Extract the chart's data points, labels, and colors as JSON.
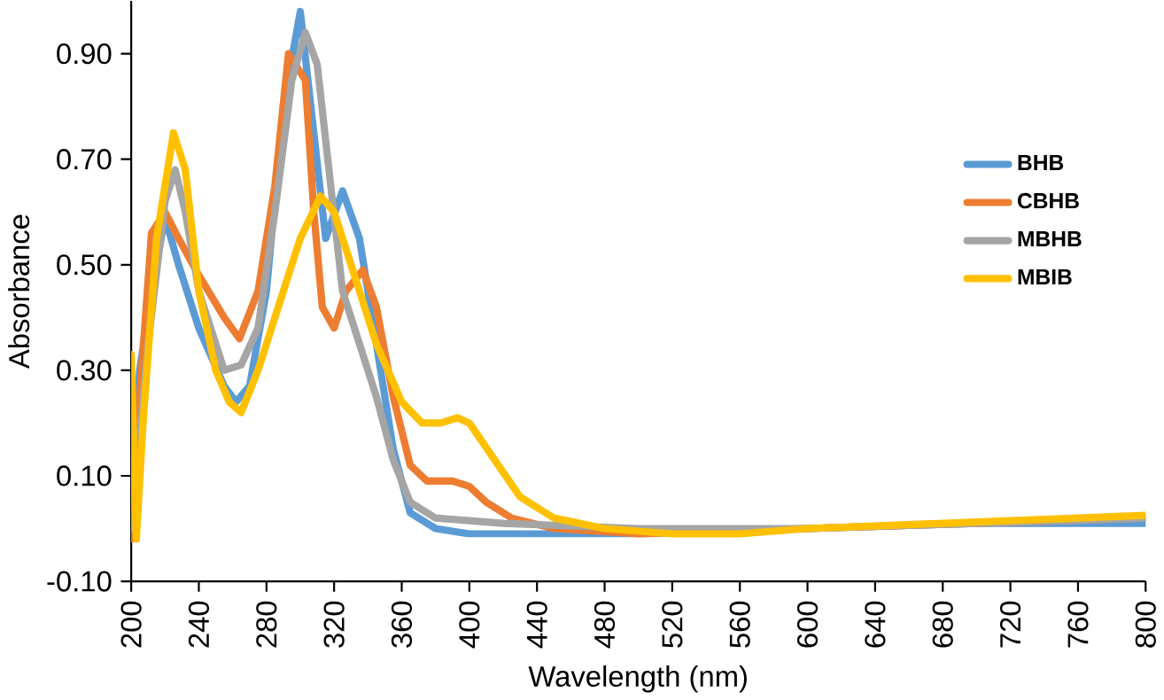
{
  "chart_data": {
    "type": "line",
    "xlabel": "Wavelength (nm)",
    "ylabel": "Absorbance",
    "xlim": [
      200,
      800
    ],
    "ylim": [
      -0.1,
      1.0
    ],
    "xticks": [
      200,
      240,
      280,
      320,
      360,
      400,
      440,
      480,
      520,
      560,
      600,
      640,
      680,
      720,
      760,
      800
    ],
    "yticks": [
      {
        "value": -0.1,
        "label": "-0.10"
      },
      {
        "value": 0.1,
        "label": "0.10"
      },
      {
        "value": 0.3,
        "label": "0.30"
      },
      {
        "value": 0.5,
        "label": "0.50"
      },
      {
        "value": 0.7,
        "label": "0.70"
      },
      {
        "value": 0.9,
        "label": "0.90"
      }
    ],
    "grid": false,
    "legend": "right",
    "marker": "none",
    "line_style": "solid",
    "series": [
      {
        "name": "BHB",
        "color": "#5b9bd5",
        "x": [
          200,
          205,
          212,
          220,
          228,
          240,
          255,
          262,
          270,
          280,
          290,
          300,
          308,
          315,
          325,
          335,
          345,
          355,
          365,
          380,
          400,
          500,
          600,
          700,
          800
        ],
        "values": [
          0.0,
          0.3,
          0.45,
          0.59,
          0.5,
          0.38,
          0.27,
          0.24,
          0.27,
          0.45,
          0.8,
          0.98,
          0.75,
          0.55,
          0.64,
          0.55,
          0.35,
          0.15,
          0.03,
          0.0,
          -0.01,
          -0.01,
          0.0,
          0.01,
          0.01
        ]
      },
      {
        "name": "CBHB",
        "color": "#ed7d31",
        "x": [
          200,
          205,
          212,
          220,
          228,
          240,
          255,
          264,
          275,
          285,
          293,
          303,
          308,
          313,
          320,
          327,
          337,
          345,
          355,
          365,
          375,
          390,
          400,
          410,
          425,
          450,
          500,
          600,
          700,
          800
        ],
        "values": [
          -0.02,
          0.25,
          0.56,
          0.6,
          0.55,
          0.48,
          0.4,
          0.36,
          0.45,
          0.65,
          0.9,
          0.85,
          0.6,
          0.42,
          0.38,
          0.45,
          0.49,
          0.42,
          0.25,
          0.12,
          0.09,
          0.09,
          0.08,
          0.05,
          0.02,
          0.0,
          -0.01,
          0.0,
          0.01,
          0.02
        ]
      },
      {
        "name": "MBHB",
        "color": "#a5a5a5",
        "x": [
          200,
          210,
          220,
          226,
          232,
          240,
          255,
          265,
          275,
          285,
          295,
          303,
          310,
          318,
          325,
          335,
          345,
          355,
          365,
          380,
          420,
          500,
          600,
          700,
          800
        ],
        "values": [
          0.0,
          0.35,
          0.62,
          0.68,
          0.6,
          0.45,
          0.3,
          0.31,
          0.38,
          0.6,
          0.85,
          0.94,
          0.88,
          0.65,
          0.45,
          0.35,
          0.25,
          0.13,
          0.05,
          0.02,
          0.01,
          0.0,
          0.0,
          0.01,
          0.02
        ]
      },
      {
        "name": "MBIB",
        "color": "#ffc000",
        "x": [
          200,
          203,
          207,
          215,
          225,
          232,
          240,
          250,
          258,
          265,
          275,
          290,
          300,
          312,
          320,
          330,
          345,
          360,
          372,
          383,
          393,
          400,
          415,
          430,
          450,
          480,
          520,
          560,
          600,
          680,
          760,
          800
        ],
        "values": [
          0.33,
          -0.02,
          0.2,
          0.55,
          0.75,
          0.68,
          0.45,
          0.3,
          0.24,
          0.22,
          0.3,
          0.45,
          0.55,
          0.63,
          0.6,
          0.5,
          0.35,
          0.24,
          0.2,
          0.2,
          0.21,
          0.2,
          0.13,
          0.06,
          0.02,
          0.0,
          -0.01,
          -0.01,
          0.0,
          0.01,
          0.02,
          0.025
        ]
      }
    ]
  }
}
